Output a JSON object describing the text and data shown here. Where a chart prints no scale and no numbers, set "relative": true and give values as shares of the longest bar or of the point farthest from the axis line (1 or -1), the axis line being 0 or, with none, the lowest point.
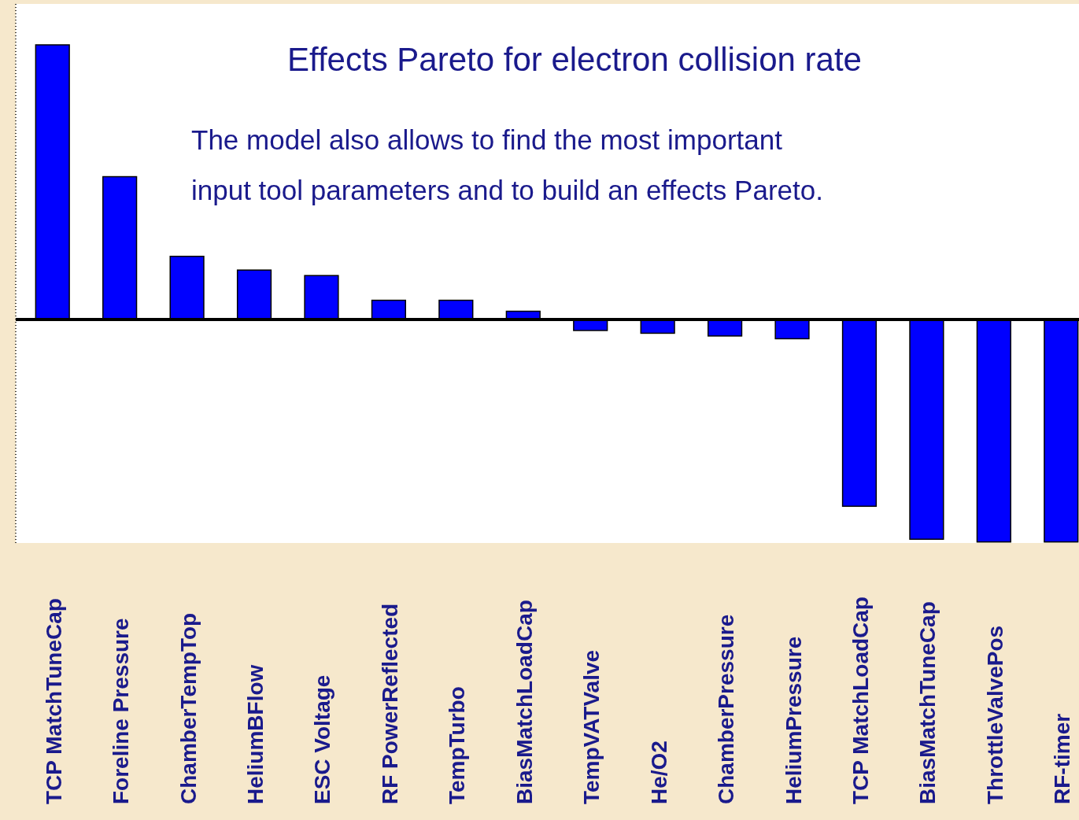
{
  "chart_data": {
    "type": "bar",
    "title": "Effects Pareto for electron collision rate",
    "annotations": [
      "The model also allows to find the most important",
      "input tool parameters and to build an effects Pareto."
    ],
    "categories": [
      "TCP MatchTuneCap",
      "Foreline Pressure",
      "ChamberTempTop",
      "HeliumBFlow",
      "ESC Voltage",
      "RF PowerReflected",
      "TempTurbo",
      "BiasMatchLoadCap",
      "TempVATValve",
      "He/O2",
      "ChamberPressure",
      "HeliumPressure",
      "TCP MatchLoadCap",
      "BiasMatchTuneCap",
      "ThrottleValvePos",
      "RF-timer"
    ],
    "values": [
      1,
      0.52,
      0.23,
      0.18,
      0.16,
      0.07,
      0.07,
      0.03,
      -0.04,
      -0.05,
      -0.06,
      -0.07,
      -0.68,
      -0.8,
      -0.81,
      -0.81
    ],
    "color": "#0000ff",
    "relative": true
  }
}
